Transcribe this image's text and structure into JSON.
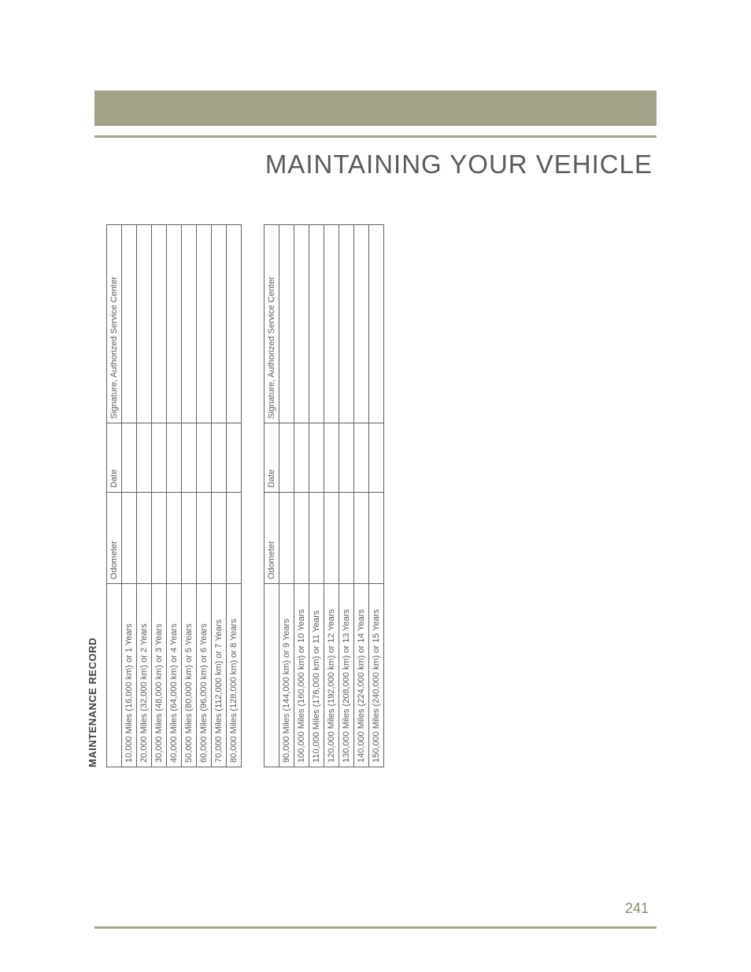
{
  "title": "MAINTAINING YOUR VEHICLE",
  "section": "MAINTENANCE RECORD",
  "page_number": "241",
  "colors": {
    "olive": "#a3a388",
    "text": "#5a5a5a",
    "border": "#606060",
    "bg": "#ffffff"
  },
  "fontsizes": {
    "title": 33,
    "section": 13,
    "table": 11,
    "pagenum": 18
  },
  "headers": {
    "interval": "",
    "odometer": "Odometer",
    "date": "Date",
    "signature": "Signature, Authorized Service Center"
  },
  "table1": {
    "rows": [
      {
        "interval": "10,000 Miles (16,000 km) or 1 Years",
        "odometer": "",
        "date": "",
        "sig": ""
      },
      {
        "interval": "20,000 Miles (32,000 km) or 2 Years",
        "odometer": "",
        "date": "",
        "sig": ""
      },
      {
        "interval": "30,000 Miles (48,000 km) or 3 Years",
        "odometer": "",
        "date": "",
        "sig": ""
      },
      {
        "interval": "40,000 Miles (64,000 km) or 4 Years",
        "odometer": "",
        "date": "",
        "sig": ""
      },
      {
        "interval": "50,000 Miles (80,000 km) or 5 Years",
        "odometer": "",
        "date": "",
        "sig": ""
      },
      {
        "interval": "60,000 Miles (96,000 km) or 6 Years",
        "odometer": "",
        "date": "",
        "sig": ""
      },
      {
        "interval": "70,000 Miles (112,000 km) or 7 Years",
        "odometer": "",
        "date": "",
        "sig": ""
      },
      {
        "interval": "80,000 Miles (128,000 km) or 8 Years",
        "odometer": "",
        "date": "",
        "sig": ""
      }
    ]
  },
  "table2": {
    "rows": [
      {
        "interval": "90,000 Miles (144,000 km) or 9 Years",
        "odometer": "",
        "date": "",
        "sig": ""
      },
      {
        "interval": "100,000 Miles (160,000 km) or 10 Years",
        "odometer": "",
        "date": "",
        "sig": ""
      },
      {
        "interval": "110,000 Miles (176,000 km) or 11 Years",
        "odometer": "",
        "date": "",
        "sig": ""
      },
      {
        "interval": "120,000 Miles (192,000 km) or 12 Years",
        "odometer": "",
        "date": "",
        "sig": ""
      },
      {
        "interval": "130,000 Miles (208,000 km) or 13 Years",
        "odometer": "",
        "date": "",
        "sig": ""
      },
      {
        "interval": "140,000 Miles (224,000 km) or 14 Years",
        "odometer": "",
        "date": "",
        "sig": ""
      },
      {
        "interval": "150,000 Miles (240,000 km) or 15 Years",
        "odometer": "",
        "date": "",
        "sig": ""
      }
    ]
  }
}
